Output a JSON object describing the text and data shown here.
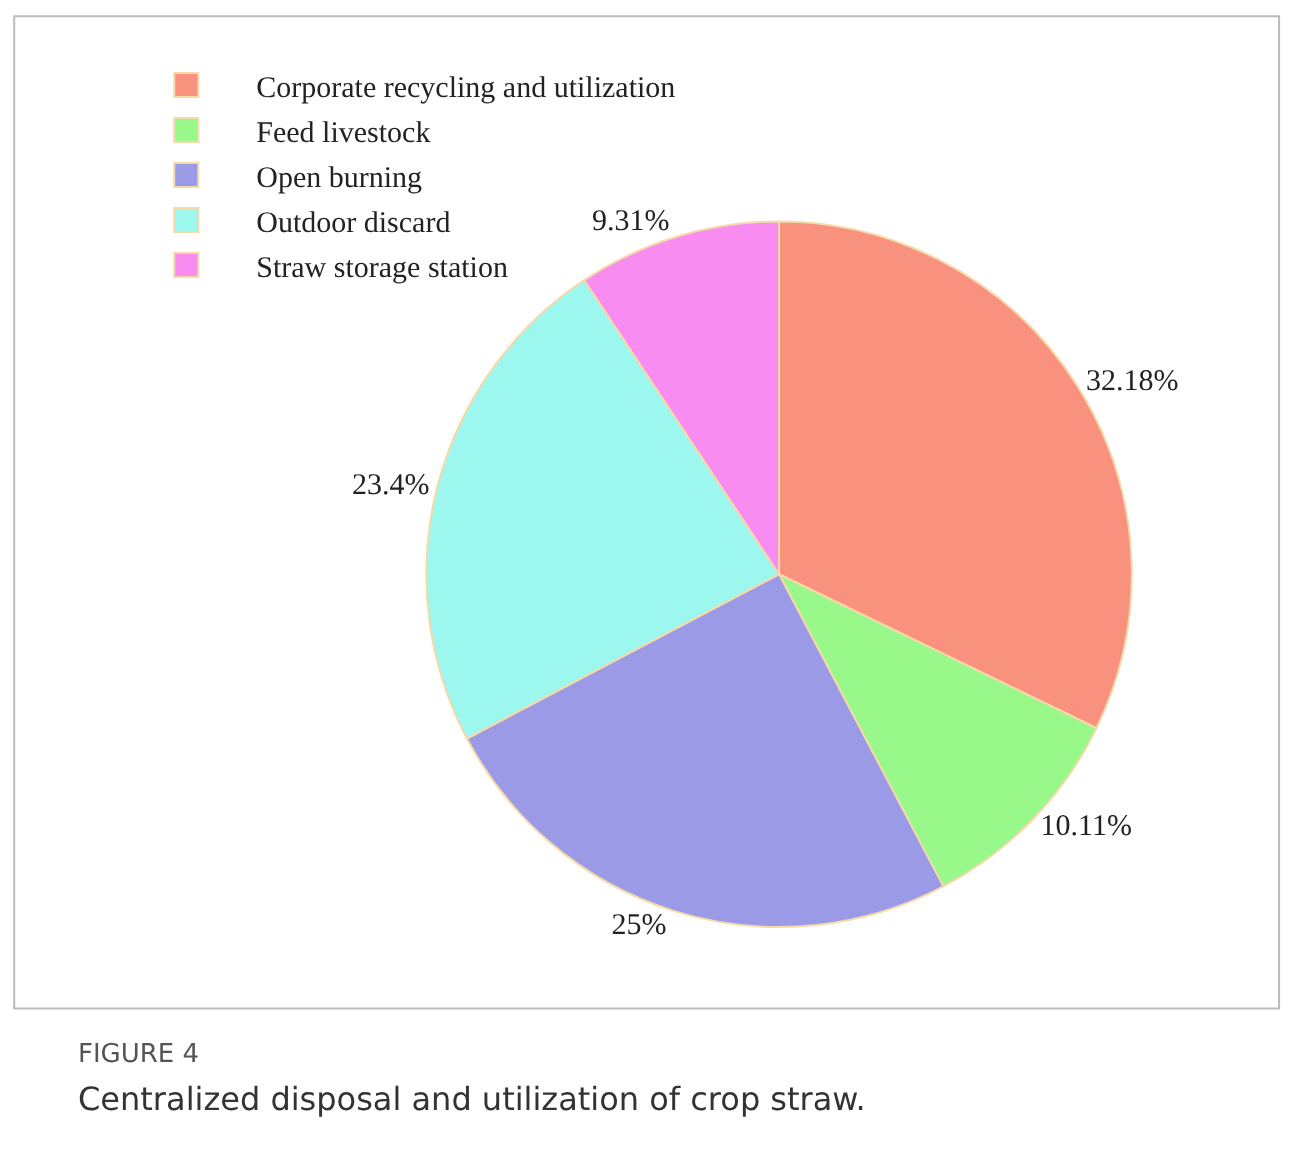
{
  "chart_data": {
    "type": "pie",
    "categories": [
      "Corporate recycling and utilization",
      "Feed livestock",
      "Open burning",
      "Outdoor discard",
      "Straw storage station"
    ],
    "values": [
      32.18,
      10.11,
      25,
      23.4,
      9.31
    ],
    "value_labels": [
      "32.18%",
      "10.11%",
      "25%",
      "23.4%",
      "9.31%"
    ],
    "colors": [
      "#f8917e",
      "#98f98a",
      "#9a9ae6",
      "#9cf8ee",
      "#f88cf0"
    ],
    "legend": "top left",
    "annotations": [
      "FIGURE 4",
      "Centralized disposal and utilization of crop straw."
    ]
  }
}
